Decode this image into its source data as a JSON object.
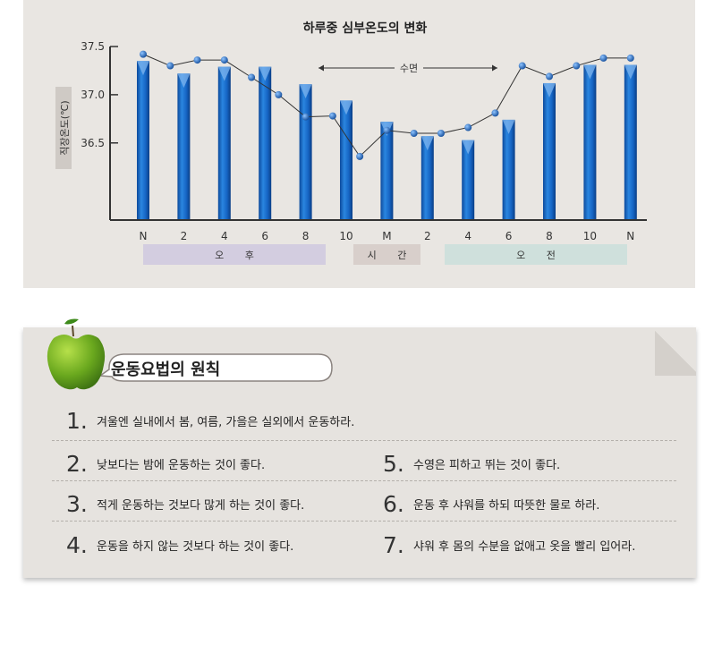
{
  "chart_data": {
    "type": "bar+line",
    "title": "하루중 심부온도의 변화",
    "ylabel": "직장온도(℃)",
    "ylim": [
      35.7,
      37.5
    ],
    "yticks": [
      "37.5",
      "37.0",
      "36.5"
    ],
    "ytick_values": [
      37.5,
      37.0,
      36.5
    ],
    "xticks": [
      "N",
      "2",
      "4",
      "6",
      "8",
      "10",
      "M",
      "2",
      "4",
      "6",
      "8",
      "10",
      "N"
    ],
    "bars": [
      37.35,
      37.22,
      37.29,
      37.29,
      37.11,
      36.94,
      36.72,
      36.57,
      36.53,
      36.74,
      37.12,
      37.31,
      37.31
    ],
    "line": [
      37.42,
      37.3,
      37.36,
      37.36,
      37.18,
      37.0,
      36.77,
      36.78,
      36.36,
      36.63,
      36.6,
      36.6,
      36.66,
      36.81,
      37.3,
      37.19,
      37.3,
      37.38,
      37.38
    ],
    "sleep_label": "수면",
    "bands": [
      "오 후",
      "시 간",
      "오 전"
    ],
    "colors": {
      "bar": "#1a6fce",
      "line": "#333333",
      "point": "#1f63b8",
      "band_pm": "#d3cde0",
      "band_mid": "#d8cfcb",
      "band_am": "#cfe0dc"
    }
  },
  "rules": {
    "title": "운동요법의 원칙",
    "items": [
      {
        "num": "1.",
        "text": "겨울엔 실내에서 봄, 여름, 가을은 실외에서 운동하라."
      },
      {
        "num": "2.",
        "text": "낮보다는 밤에 운동하는 것이 좋다."
      },
      {
        "num": "5.",
        "text": "수영은 피하고 뛰는 것이 좋다."
      },
      {
        "num": "3.",
        "text": "적게 운동하는 것보다 많게 하는 것이 좋다."
      },
      {
        "num": "6.",
        "text": "운동 후 샤워를 하되 따뜻한 물로 하라."
      },
      {
        "num": "4.",
        "text": "운동을 하지 않는 것보다 하는 것이 좋다."
      },
      {
        "num": "7.",
        "text": "샤워 후 몸의 수분을 없애고 옷을 빨리 입어라."
      }
    ]
  },
  "icons": {
    "apple": "green-apple-icon"
  }
}
